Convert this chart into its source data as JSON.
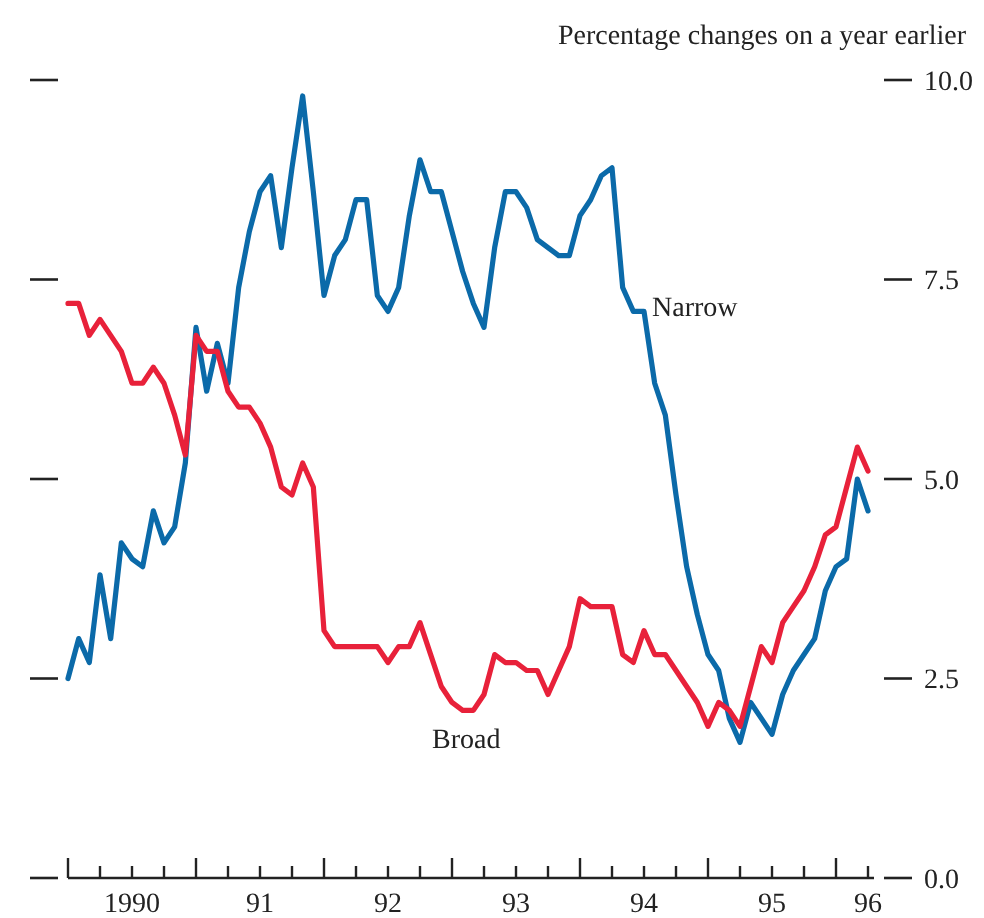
{
  "chart_data": {
    "type": "line",
    "ylabel": "Percentage changes on a year earlier",
    "categories": [
      null,
      null,
      null,
      null,
      null,
      null,
      "1990",
      null,
      null,
      null,
      null,
      null,
      null,
      null,
      null,
      null,
      null,
      null,
      "91",
      null,
      null,
      null,
      null,
      null,
      null,
      null,
      null,
      null,
      null,
      null,
      "92",
      null,
      null,
      null,
      null,
      null,
      null,
      null,
      null,
      null,
      null,
      null,
      "93",
      null,
      null,
      null,
      null,
      null,
      null,
      null,
      null,
      null,
      null,
      null,
      "94",
      null,
      null,
      null,
      null,
      null,
      null,
      null,
      null,
      null,
      null,
      null,
      "95",
      null,
      null,
      null,
      null,
      null,
      null,
      null,
      null,
      "96"
    ],
    "ylim": [
      0,
      10
    ],
    "yticks": [
      {
        "value": 0,
        "label": "0.0"
      },
      {
        "value": 2.5,
        "label": "2.5"
      },
      {
        "value": 5,
        "label": "5.0"
      },
      {
        "value": 7.5,
        "label": "7.5"
      },
      {
        "value": 10,
        "label": "10.0"
      }
    ],
    "grid": false,
    "legend": false,
    "marker": "none",
    "line_style": "solid",
    "series": [
      {
        "name": "Narrow",
        "color": "#0b6aa9",
        "values": [
          2.5,
          3.0,
          2.7,
          3.8,
          3.0,
          4.2,
          4.0,
          3.9,
          4.6,
          4.2,
          4.4,
          5.2,
          6.9,
          6.1,
          6.7,
          6.2,
          7.4,
          8.1,
          8.6,
          8.8,
          7.9,
          8.9,
          9.8,
          8.6,
          7.3,
          7.8,
          8.0,
          8.5,
          8.5,
          7.3,
          7.1,
          7.4,
          8.3,
          9.0,
          8.6,
          8.6,
          8.1,
          7.6,
          7.2,
          6.9,
          7.9,
          8.6,
          8.6,
          8.4,
          8.0,
          7.9,
          7.8,
          7.8,
          8.3,
          8.5,
          8.8,
          8.9,
          7.4,
          7.1,
          7.1,
          6.2,
          5.8,
          4.8,
          3.9,
          3.3,
          2.8,
          2.6,
          2.0,
          1.7,
          2.2,
          2.0,
          1.8,
          2.3,
          2.6,
          2.8,
          3.0,
          3.6,
          3.9,
          4.0,
          5.0,
          4.6
        ]
      },
      {
        "name": "Broad",
        "color": "#e8213a",
        "values": [
          7.2,
          7.2,
          6.8,
          7.0,
          6.8,
          6.6,
          6.2,
          6.2,
          6.4,
          6.2,
          5.8,
          5.3,
          6.8,
          6.6,
          6.6,
          6.1,
          5.9,
          5.9,
          5.7,
          5.4,
          4.9,
          4.8,
          5.2,
          4.9,
          3.1,
          2.9,
          2.9,
          2.9,
          2.9,
          2.9,
          2.7,
          2.9,
          2.9,
          3.2,
          2.8,
          2.4,
          2.2,
          2.1,
          2.1,
          2.3,
          2.8,
          2.7,
          2.7,
          2.6,
          2.6,
          2.3,
          2.6,
          2.9,
          3.5,
          3.4,
          3.4,
          3.4,
          2.8,
          2.7,
          3.1,
          2.8,
          2.8,
          2.6,
          2.4,
          2.2,
          1.9,
          2.2,
          2.1,
          1.9,
          2.4,
          2.9,
          2.7,
          3.2,
          3.4,
          3.6,
          3.9,
          4.3,
          4.4,
          4.9,
          5.4,
          5.1
        ]
      }
    ]
  }
}
